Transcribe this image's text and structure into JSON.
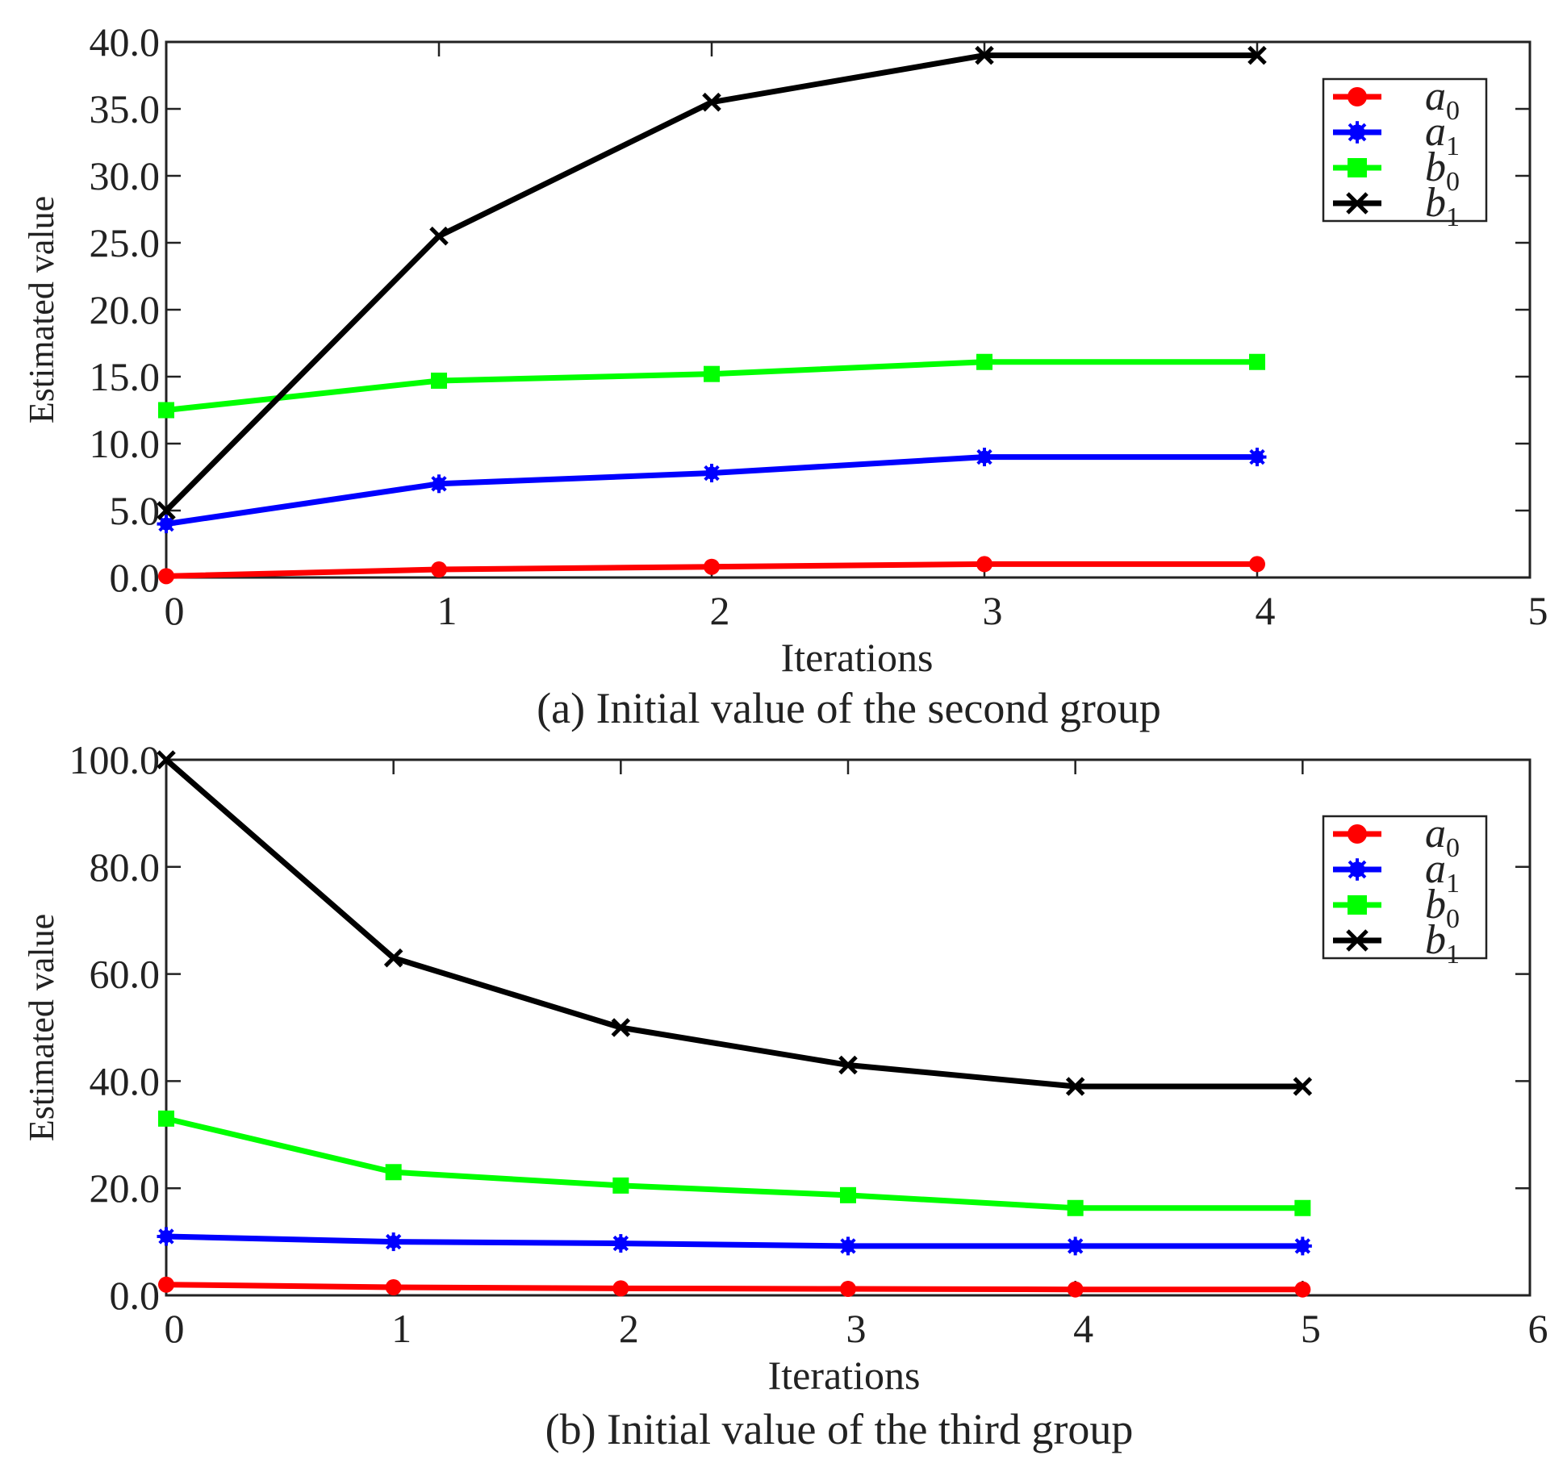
{
  "chart_data": [
    {
      "type": "line",
      "caption": "(a) Initial value of the second group",
      "xlabel": "Iterations",
      "ylabel": "Estimated value",
      "xlim": [
        0,
        5
      ],
      "ylim": [
        0,
        40
      ],
      "x_ticks": [
        "0",
        "1",
        "2",
        "3",
        "4",
        "5"
      ],
      "y_ticks": [
        "0.0",
        "5.0",
        "10.0",
        "15.0",
        "20.0",
        "25.0",
        "30.0",
        "35.0",
        "40.0"
      ],
      "grid": false,
      "legend_position": "top-right",
      "x": [
        0,
        1,
        2,
        3,
        4
      ],
      "series": [
        {
          "name": "a0",
          "base": "a",
          "sub": "0",
          "color": "#ff0000",
          "marker": "circle",
          "values": [
            0.1,
            0.6,
            0.8,
            1.0,
            1.0
          ]
        },
        {
          "name": "a1",
          "base": "a",
          "sub": "1",
          "color": "#0000ff",
          "marker": "star",
          "values": [
            4.0,
            7.0,
            7.8,
            9.0,
            9.0
          ]
        },
        {
          "name": "b0",
          "base": "b",
          "sub": "0",
          "color": "#00ff00",
          "marker": "square",
          "values": [
            12.5,
            14.7,
            15.2,
            16.1,
            16.1
          ]
        },
        {
          "name": "b1",
          "base": "b",
          "sub": "1",
          "color": "#000000",
          "marker": "x",
          "values": [
            5.0,
            25.5,
            35.5,
            39.0,
            39.0
          ]
        }
      ]
    },
    {
      "type": "line",
      "caption": "(b) Initial value of the third group",
      "xlabel": "Iterations",
      "ylabel": "Estimated value",
      "xlim": [
        0,
        6
      ],
      "ylim": [
        0,
        100
      ],
      "x_ticks": [
        "0",
        "1",
        "2",
        "3",
        "4",
        "5",
        "6"
      ],
      "y_ticks": [
        "0.0",
        "20.0",
        "40.0",
        "60.0",
        "80.0",
        "100.0"
      ],
      "grid": false,
      "legend_position": "top-right",
      "x": [
        0,
        1,
        2,
        3,
        4,
        5
      ],
      "series": [
        {
          "name": "a0",
          "base": "a",
          "sub": "0",
          "color": "#ff0000",
          "marker": "circle",
          "values": [
            2.0,
            1.5,
            1.3,
            1.2,
            1.1,
            1.1
          ]
        },
        {
          "name": "a1",
          "base": "a",
          "sub": "1",
          "color": "#0000ff",
          "marker": "star",
          "values": [
            11.0,
            10.0,
            9.7,
            9.2,
            9.2,
            9.2
          ]
        },
        {
          "name": "b0",
          "base": "b",
          "sub": "0",
          "color": "#00ff00",
          "marker": "square",
          "values": [
            33.0,
            23.0,
            20.5,
            18.7,
            16.3,
            16.3
          ]
        },
        {
          "name": "b1",
          "base": "b",
          "sub": "1",
          "color": "#000000",
          "marker": "x",
          "values": [
            100.0,
            63.0,
            50.0,
            43.0,
            39.0,
            39.0
          ]
        }
      ]
    }
  ]
}
